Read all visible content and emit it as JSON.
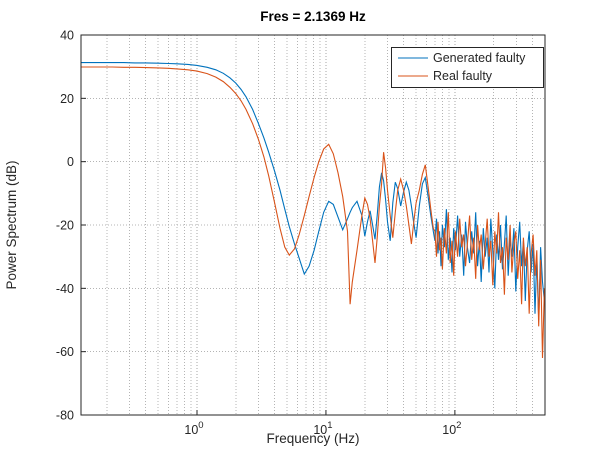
{
  "chart_data": {
    "type": "line",
    "title": "Fres = 2.1369 Hz",
    "xlabel": "Frequency (Hz)",
    "ylabel": "Power Spectrum (dB)",
    "x_scale": "log",
    "xlim": [
      0.126,
      500
    ],
    "ylim": [
      -80,
      40
    ],
    "y_ticks": [
      -80,
      -60,
      -40,
      -20,
      0,
      20,
      40
    ],
    "x_tick_exponents": [
      0,
      1,
      2
    ],
    "grid": true,
    "minor_grid": true,
    "legend_position": "northeast",
    "x": [
      0.126,
      0.15,
      0.18,
      0.22,
      0.27,
      0.33,
      0.4,
      0.5,
      0.6,
      0.7,
      0.85,
      1.0,
      1.2,
      1.4,
      1.6,
      1.8,
      2.0,
      2.2,
      2.4,
      2.7,
      3.0,
      3.3,
      3.6,
      4.0,
      4.4,
      4.8,
      5.2,
      5.7,
      6.2,
      6.8,
      7.4,
      8.1,
      8.8,
      9.6,
      10.5,
      11.4,
      12.4,
      13.5,
      14.7,
      15.4,
      16.0,
      17.4,
      19.0,
      20,
      21,
      22,
      23,
      24,
      25,
      26,
      27,
      28,
      29,
      30,
      31.5,
      33,
      34.5,
      36,
      38,
      40,
      42,
      44,
      46,
      48,
      50,
      53,
      56,
      59,
      62,
      65,
      68,
      70,
      72,
      74,
      76,
      78,
      80,
      83,
      86,
      89,
      92,
      95,
      98,
      101,
      105,
      109,
      113,
      117,
      121,
      125,
      130,
      135,
      140,
      145,
      150,
      155,
      160,
      166,
      172,
      178,
      184,
      190,
      197,
      204,
      211,
      218,
      226,
      234,
      242,
      250,
      259,
      268,
      277,
      287,
      297,
      307,
      318,
      329,
      340,
      352,
      364,
      377,
      390,
      404,
      418,
      432,
      447,
      462,
      478,
      495
    ],
    "series": [
      {
        "name": "Generated faulty",
        "color": "#0072BD",
        "values": [
          31.3,
          31.3,
          31.3,
          31.3,
          31.3,
          31.2,
          31.2,
          31.1,
          31.0,
          30.9,
          30.7,
          30.4,
          29.8,
          29.0,
          27.9,
          26.5,
          24.8,
          22.8,
          20.5,
          16.5,
          12.0,
          7.5,
          3.0,
          -3.0,
          -9.0,
          -15.0,
          -20.5,
          -26.0,
          -30.5,
          -35.5,
          -33.0,
          -28.0,
          -22.0,
          -16.0,
          -12.5,
          -13.5,
          -17.5,
          -21.5,
          -18.0,
          -16.0,
          -14.5,
          -12.5,
          -17.0,
          -23.5,
          -19.0,
          -15.5,
          -20.0,
          -24.5,
          -17.0,
          -8.0,
          -3.5,
          -6.0,
          -12.0,
          -19.0,
          -25.0,
          -13.0,
          -6.5,
          -8.5,
          -14.0,
          -9.5,
          -6.5,
          -9.0,
          -14.0,
          -19.5,
          -24.0,
          -14.0,
          -7.0,
          -5.0,
          -11.0,
          -17.0,
          -22.0,
          -25,
          -18,
          -29,
          -22,
          -33,
          -20,
          -27,
          -15,
          -31,
          -24,
          -35,
          -21,
          -28,
          -17,
          -30,
          -23,
          -36,
          -19,
          -27,
          -32,
          -22,
          -29,
          -16,
          -33,
          -25,
          -38,
          -21,
          -30,
          -24,
          -35,
          -18,
          -28,
          -40,
          -23,
          -31,
          -20,
          -34,
          -26,
          -17,
          -36,
          -24,
          -30,
          -21,
          -41,
          -27,
          -19,
          -33,
          -25,
          -44,
          -28,
          -22,
          -35,
          -26,
          -48,
          -30,
          -50,
          -27,
          -38,
          -44
        ]
      },
      {
        "name": "Real faulty",
        "color": "#D95319",
        "values": [
          29.9,
          29.9,
          29.9,
          29.9,
          29.8,
          29.8,
          29.7,
          29.6,
          29.5,
          29.3,
          29.0,
          28.6,
          27.8,
          26.7,
          25.3,
          23.5,
          21.5,
          19.2,
          16.5,
          12.0,
          7.0,
          1.5,
          -4.5,
          -13.0,
          -21.0,
          -27.0,
          -29.5,
          -27.5,
          -23.0,
          -17.0,
          -11.0,
          -5.0,
          0.0,
          4.0,
          5.5,
          2.5,
          -3.5,
          -11.0,
          -22.0,
          -45.0,
          -38.0,
          -28.0,
          -17.0,
          -11.5,
          -13.5,
          -18.0,
          -25.0,
          -32.0,
          -24.0,
          -14.0,
          -7.0,
          3.0,
          -2.0,
          -9.0,
          -17.0,
          -24.0,
          -16.0,
          -9.0,
          -5.5,
          -9.0,
          -14.0,
          -20.0,
          -26.0,
          -19.0,
          -13.0,
          -9.0,
          -4.0,
          -1.0,
          -8.0,
          -15.0,
          -21.0,
          -22,
          -30,
          -19,
          -28,
          -24,
          -34,
          -21,
          -29,
          -16,
          -32,
          -25,
          -36,
          -22,
          -30,
          -18,
          -27,
          -23,
          -33,
          -26,
          -17,
          -31,
          -24,
          -37,
          -20,
          -28,
          -23,
          -34,
          -26,
          -18,
          -30,
          -25,
          -39,
          -22,
          -29,
          -16,
          -32,
          -27,
          -42,
          -24,
          -31,
          -20,
          -35,
          -26,
          -22,
          -37,
          -28,
          -45,
          -24,
          -33,
          -27,
          -48,
          -29,
          -23,
          -36,
          -28,
          -52,
          -31,
          -62,
          -40
        ]
      }
    ]
  }
}
